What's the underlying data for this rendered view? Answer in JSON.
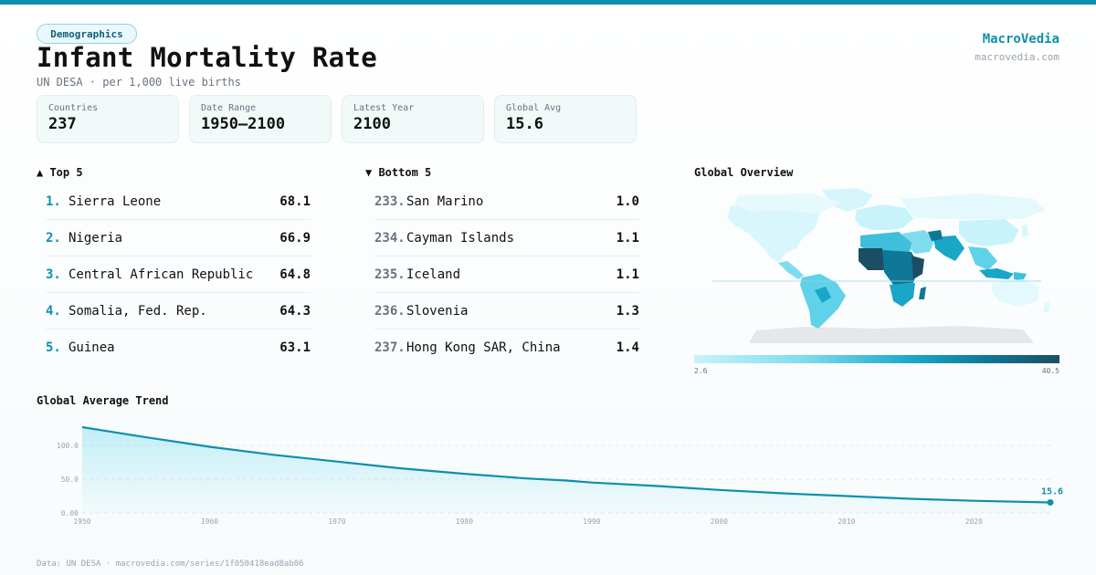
{
  "category": "Demographics",
  "title": "Infant Mortality Rate",
  "subtitle": "UN DESA · per 1,000 live births",
  "brand": {
    "name": "MacroVedia",
    "url": "macrovedia.com"
  },
  "stats": [
    {
      "label": "Countries",
      "value": "237"
    },
    {
      "label": "Date Range",
      "value": "1950–2100"
    },
    {
      "label": "Latest Year",
      "value": "2100"
    },
    {
      "label": "Global Avg",
      "value": "15.6"
    }
  ],
  "top5": {
    "heading": "▲ Top 5",
    "items": [
      {
        "rank": "1.",
        "name": "Sierra Leone",
        "value": "68.1"
      },
      {
        "rank": "2.",
        "name": "Nigeria",
        "value": "66.9"
      },
      {
        "rank": "3.",
        "name": "Central African Republic",
        "value": "64.8"
      },
      {
        "rank": "4.",
        "name": "Somalia, Fed. Rep.",
        "value": "64.3"
      },
      {
        "rank": "5.",
        "name": "Guinea",
        "value": "63.1"
      }
    ]
  },
  "bottom5": {
    "heading": "▼ Bottom 5",
    "items": [
      {
        "rank": "233.",
        "name": "San Marino",
        "value": "1.0"
      },
      {
        "rank": "234.",
        "name": "Cayman Islands",
        "value": "1.1"
      },
      {
        "rank": "235.",
        "name": "Iceland",
        "value": "1.1"
      },
      {
        "rank": "236.",
        "name": "Slovenia",
        "value": "1.3"
      },
      {
        "rank": "237.",
        "name": "Hong Kong SAR, China",
        "value": "1.4"
      }
    ]
  },
  "map": {
    "heading": "Global Overview",
    "scale_min": "2.6",
    "scale_max": "40.5",
    "colors": {
      "low": "#c8f3fb",
      "mid": "#1aa6c7",
      "high": "#1b4e63",
      "nodata": "#e5e7eb"
    }
  },
  "trend_heading": "Global Average Trend",
  "footer": "Data: UN DESA · macrovedia.com/series/1f050418ead8ab06",
  "accent_color": "#0e8fae",
  "chart_data": {
    "type": "area",
    "x": [
      1950,
      1955,
      1960,
      1965,
      1970,
      1975,
      1980,
      1985,
      1988,
      1990,
      1995,
      2000,
      2005,
      2010,
      2015,
      2020,
      2026
    ],
    "values": [
      127,
      112,
      98,
      86,
      76,
      66,
      58,
      51,
      48,
      45,
      40,
      34,
      29,
      25,
      21,
      18,
      15.6
    ],
    "last_label": "15.6",
    "y_ticks": [
      "0.00",
      "50.0",
      "100.0"
    ],
    "y_tick_values": [
      0,
      50,
      100
    ],
    "x_ticks": [
      "1950",
      "1960",
      "1970",
      "1980",
      "1990",
      "2000",
      "2010",
      "2020"
    ],
    "x_tick_values": [
      1950,
      1960,
      1970,
      1980,
      1990,
      2000,
      2010,
      2020
    ],
    "xlim": [
      1950,
      2026
    ],
    "ylim": [
      0,
      127
    ],
    "grid": true
  }
}
